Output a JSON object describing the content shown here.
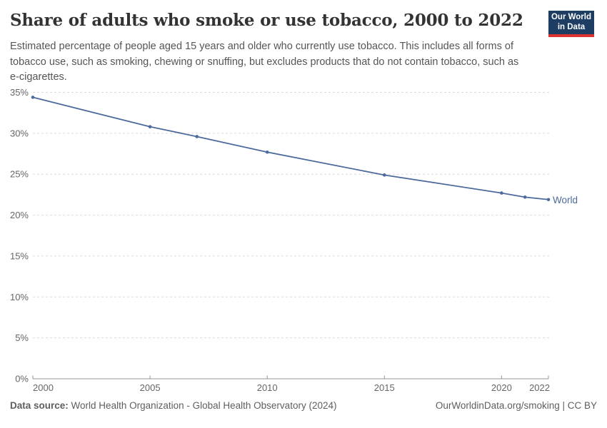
{
  "header": {
    "title": "Share of adults who smoke or use tobacco, 2000 to 2022",
    "subtitle_lines": [
      "Estimated percentage of people aged 15 years and older who currently use tobacco. This includes all forms of",
      "tobacco use, such as smoking, chewing or snuffing, but excludes products that do not contain tobacco, such as",
      "e-cigarettes."
    ],
    "logo": {
      "line1": "Our World",
      "line2": "in Data",
      "bg_color": "#1d3d63",
      "stripe_color": "#dc3430"
    }
  },
  "chart_data": {
    "type": "line",
    "title": "Share of adults who smoke or use tobacco, 2000 to 2022",
    "xlabel": "",
    "ylabel": "",
    "x": [
      2000,
      2005,
      2007,
      2010,
      2015,
      2020,
      2021,
      2022
    ],
    "series": [
      {
        "name": "World",
        "values": [
          34.4,
          30.8,
          29.6,
          27.7,
          24.9,
          22.7,
          22.2,
          21.9
        ],
        "color": "#4C6A9C"
      }
    ],
    "xlim": [
      2000,
      2022
    ],
    "ylim": [
      0,
      35
    ],
    "grid": "horizontal-dashed",
    "legend_position": "end-of-line-label",
    "yticks": [
      {
        "value": 0,
        "label": "0%"
      },
      {
        "value": 5,
        "label": "5%"
      },
      {
        "value": 10,
        "label": "10%"
      },
      {
        "value": 15,
        "label": "15%"
      },
      {
        "value": 20,
        "label": "20%"
      },
      {
        "value": 25,
        "label": "25%"
      },
      {
        "value": 30,
        "label": "30%"
      },
      {
        "value": 35,
        "label": "35%"
      }
    ],
    "xticks": [
      {
        "value": 2000,
        "label": "2000"
      },
      {
        "value": 2005,
        "label": "2005"
      },
      {
        "value": 2010,
        "label": "2010"
      },
      {
        "value": 2015,
        "label": "2015"
      },
      {
        "value": 2020,
        "label": "2020"
      },
      {
        "value": 2022,
        "label": "2022"
      }
    ]
  },
  "footer": {
    "source_label": "Data source:",
    "source_text": "World Health Organization - Global Health Observatory (2024)",
    "link_text": "OurWorldinData.org/smoking | CC BY"
  }
}
